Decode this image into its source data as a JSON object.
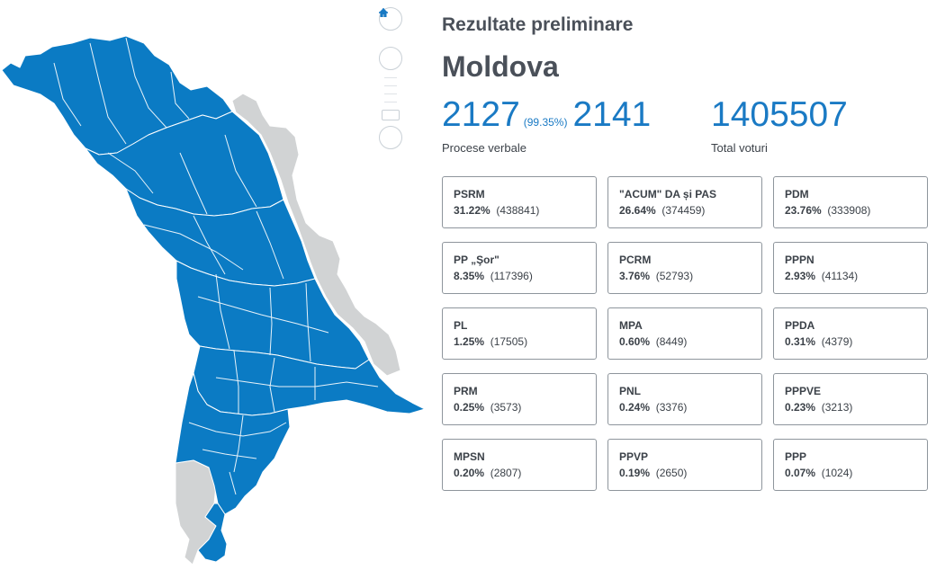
{
  "header": {
    "kicker": "Rezultate preliminare",
    "region": "Moldova"
  },
  "stats": {
    "processed": "2127",
    "processed_percent": "(99.35%)",
    "total_protocols": "2141",
    "protocols_label": "Procese verbale",
    "total_votes": "1405507",
    "votes_label": "Total voturi"
  },
  "map": {
    "zoom_controls": [
      "home-icon",
      "plus-icon",
      "minus-icon"
    ],
    "colors": {
      "won": "#0b7bc4",
      "other": "#d1d3d4",
      "border": "#ffffff"
    }
  },
  "parties": [
    {
      "name": "PSRM",
      "percent": "31.22%",
      "votes": "(438841)"
    },
    {
      "name": "\"ACUM\" DA și PAS",
      "percent": "26.64%",
      "votes": "(374459)"
    },
    {
      "name": "PDM",
      "percent": "23.76%",
      "votes": "(333908)"
    },
    {
      "name": "PP „Şor\"",
      "percent": "8.35%",
      "votes": "(117396)"
    },
    {
      "name": "PCRM",
      "percent": "3.76%",
      "votes": "(52793)"
    },
    {
      "name": "PPPN",
      "percent": "2.93%",
      "votes": "(41134)"
    },
    {
      "name": "PL",
      "percent": "1.25%",
      "votes": "(17505)"
    },
    {
      "name": "MPA",
      "percent": "0.60%",
      "votes": "(8449)"
    },
    {
      "name": "PPDA",
      "percent": "0.31%",
      "votes": "(4379)"
    },
    {
      "name": "PRM",
      "percent": "0.25%",
      "votes": "(3573)"
    },
    {
      "name": "PNL",
      "percent": "0.24%",
      "votes": "(3376)"
    },
    {
      "name": "PPPVE",
      "percent": "0.23%",
      "votes": "(3213)"
    },
    {
      "name": "MPSN",
      "percent": "0.20%",
      "votes": "(2807)"
    },
    {
      "name": "PPVP",
      "percent": "0.19%",
      "votes": "(2650)"
    },
    {
      "name": "PPP",
      "percent": "0.07%",
      "votes": "(1024)"
    }
  ]
}
